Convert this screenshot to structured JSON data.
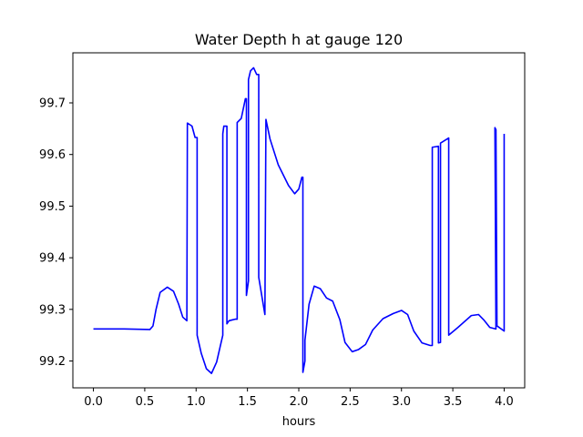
{
  "chart_data": {
    "type": "line",
    "title": "Water Depth h at gauge 120",
    "xlabel": "hours",
    "ylabel": "",
    "xlim": [
      -0.2,
      4.2
    ],
    "ylim": [
      99.148,
      99.797
    ],
    "xticks": [
      0.0,
      0.5,
      1.0,
      1.5,
      2.0,
      2.5,
      3.0,
      3.5,
      4.0
    ],
    "xtick_labels": [
      "0.0",
      "0.5",
      "1.0",
      "1.5",
      "2.0",
      "2.5",
      "3.0",
      "3.5",
      "4.0"
    ],
    "yticks": [
      99.2,
      99.3,
      99.4,
      99.5,
      99.6,
      99.7
    ],
    "ytick_labels": [
      "99.2",
      "99.3",
      "99.4",
      "99.5",
      "99.6",
      "99.7"
    ],
    "grid": false,
    "legend": "none",
    "series": [
      {
        "name": "",
        "color": "#0000ff",
        "x": [
          0.0,
          0.3,
          0.55,
          0.58,
          0.61,
          0.65,
          0.72,
          0.78,
          0.83,
          0.87,
          0.91,
          0.915,
          0.96,
          0.99,
          1.01,
          1.01,
          1.05,
          1.1,
          1.15,
          1.2,
          1.26,
          1.26,
          1.27,
          1.3,
          1.3,
          1.32,
          1.38,
          1.4,
          1.4,
          1.44,
          1.48,
          1.49,
          1.49,
          1.51,
          1.51,
          1.53,
          1.56,
          1.59,
          1.61,
          1.61,
          1.67,
          1.68,
          1.72,
          1.8,
          1.9,
          1.96,
          2.0,
          2.03,
          2.04,
          2.04,
          2.06,
          2.06,
          2.1,
          2.15,
          2.21,
          2.27,
          2.33,
          2.4,
          2.45,
          2.52,
          2.58,
          2.65,
          2.72,
          2.82,
          2.92,
          3.0,
          3.06,
          3.12,
          3.2,
          3.28,
          3.3,
          3.3,
          3.36,
          3.36,
          3.38,
          3.38,
          3.46,
          3.46,
          3.55,
          3.68,
          3.75,
          3.8,
          3.86,
          3.92,
          3.91,
          3.92,
          3.93,
          4.0,
          4.0
        ],
        "y": [
          99.262,
          99.262,
          99.261,
          99.268,
          99.3,
          99.333,
          99.343,
          99.335,
          99.31,
          99.285,
          99.278,
          99.661,
          99.655,
          99.633,
          99.633,
          99.25,
          99.215,
          99.185,
          99.176,
          99.198,
          99.25,
          99.64,
          99.655,
          99.655,
          99.272,
          99.278,
          99.281,
          99.281,
          99.662,
          99.67,
          99.708,
          99.708,
          99.327,
          99.355,
          99.745,
          99.762,
          99.768,
          99.755,
          99.755,
          99.362,
          99.29,
          99.668,
          99.63,
          99.58,
          99.54,
          99.524,
          99.533,
          99.556,
          99.556,
          99.178,
          99.2,
          99.24,
          99.31,
          99.345,
          99.34,
          99.322,
          99.316,
          99.28,
          99.236,
          99.218,
          99.222,
          99.232,
          99.26,
          99.282,
          99.292,
          99.298,
          99.29,
          99.258,
          99.235,
          99.23,
          99.23,
          99.614,
          99.616,
          99.235,
          99.236,
          99.622,
          99.632,
          99.25,
          99.265,
          99.288,
          99.29,
          99.28,
          99.265,
          99.262,
          99.652,
          99.648,
          99.268,
          99.258,
          99.64
        ]
      }
    ]
  }
}
